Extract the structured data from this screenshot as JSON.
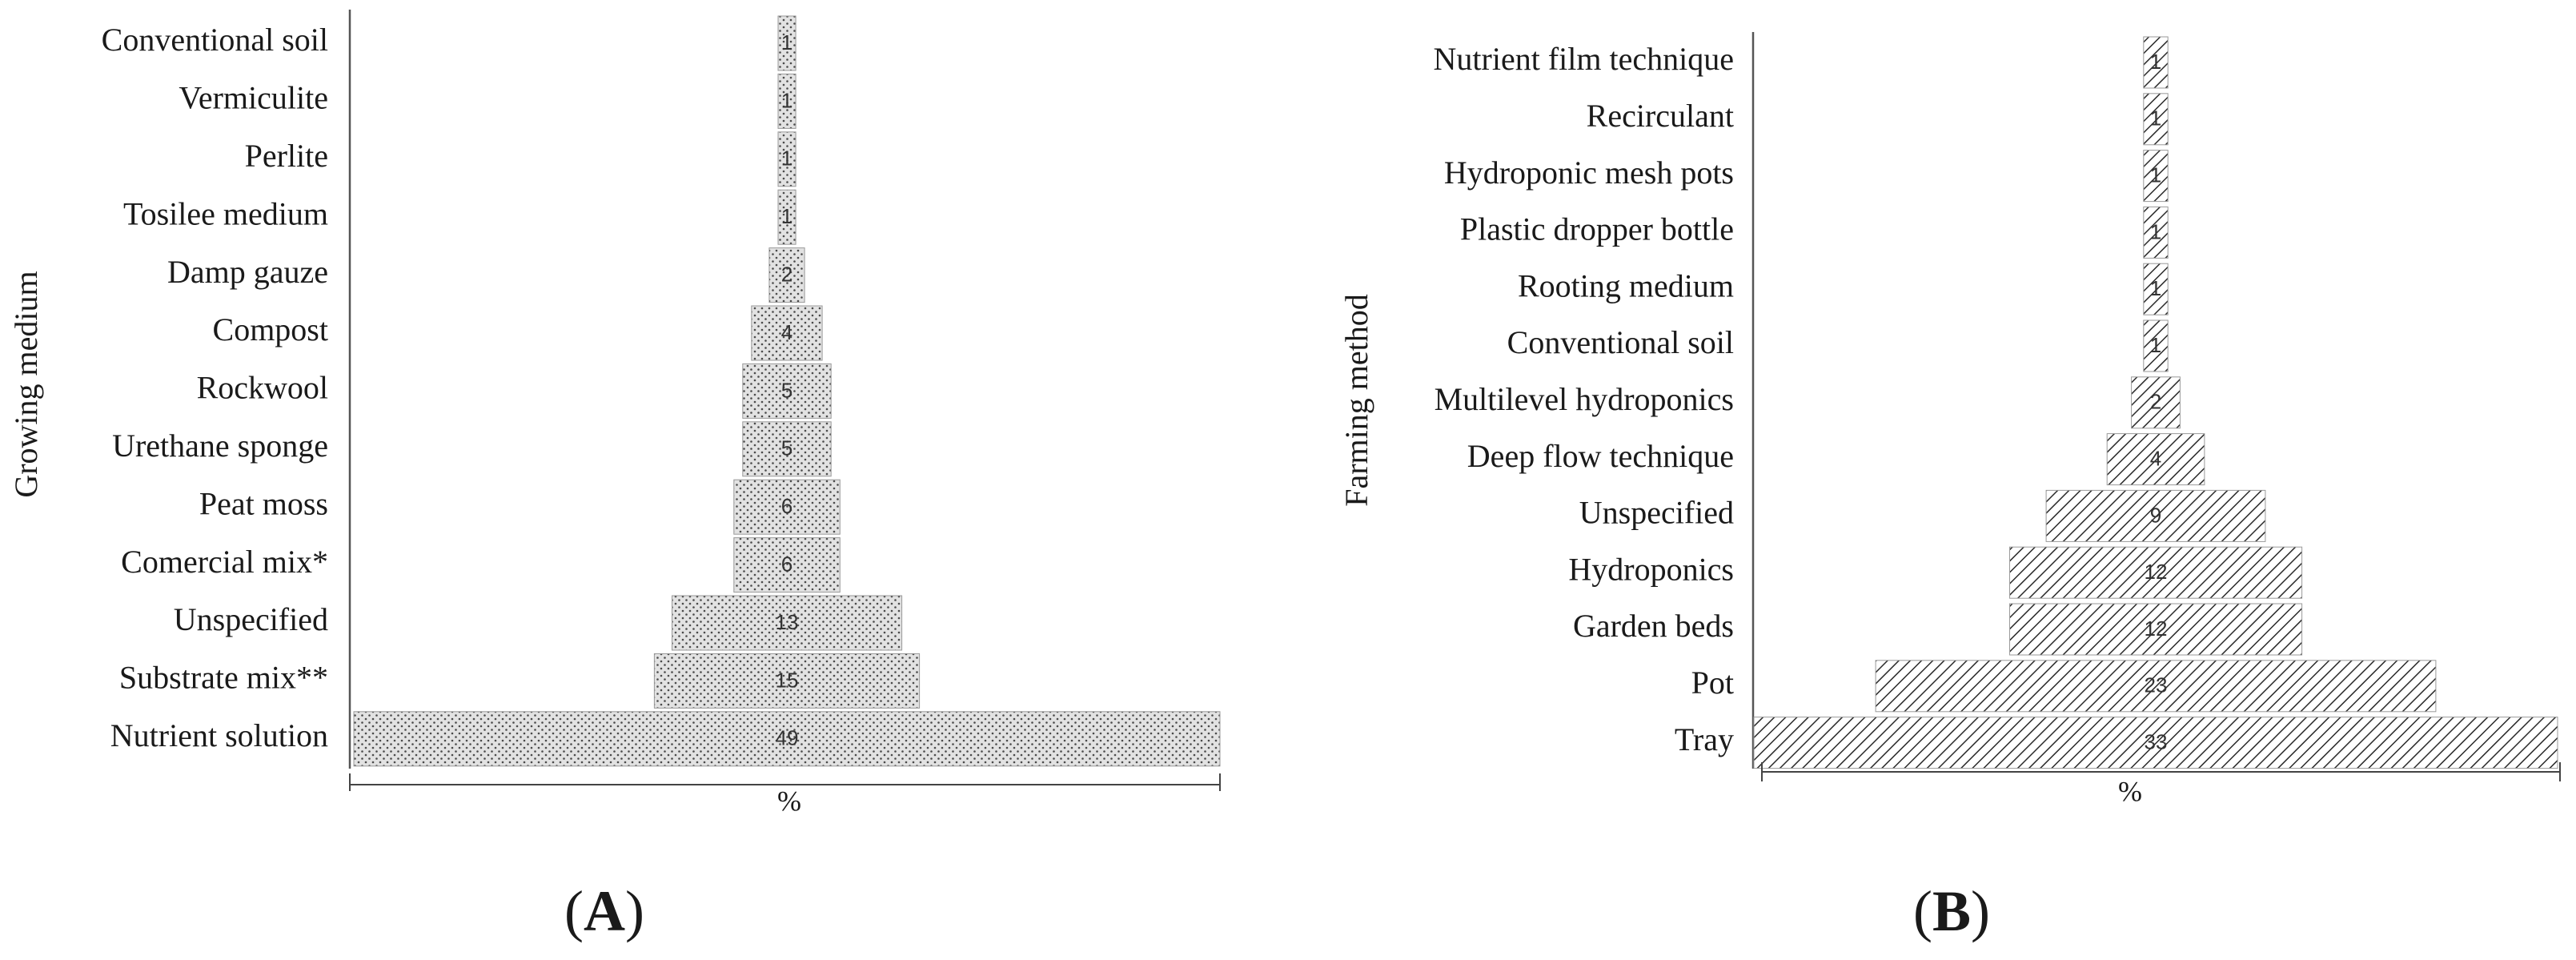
{
  "chart_data": [
    {
      "type": "bar",
      "orientation": "horizontal-centered",
      "panel_label": "(A)",
      "panel_letter": "A",
      "ylabel": "Growing medium",
      "xlabel": "%",
      "categories": [
        "Conventional soil",
        "Vermiculite",
        "Perlite",
        "Tosilee medium",
        "Damp gauze",
        "Compost",
        "Rockwool",
        "Urethane sponge",
        "Peat moss",
        "Comercial mix*",
        "Unspecified",
        "Substrate mix**",
        "Nutrient solution"
      ],
      "values": [
        1,
        1,
        1,
        1,
        2,
        4,
        5,
        5,
        6,
        6,
        13,
        15,
        49
      ],
      "xlim": [
        0,
        49
      ],
      "pattern": "dots",
      "fill_color": "#e2e2e2",
      "pattern_color": "#4a4a4a"
    },
    {
      "type": "bar",
      "orientation": "horizontal-centered",
      "panel_label": "(B)",
      "panel_letter": "B",
      "ylabel": "Farming method",
      "xlabel": "%",
      "categories": [
        "Nutrient film technique",
        "Recirculant",
        "Hydroponic mesh pots",
        "Plastic dropper bottle",
        "Rooting medium",
        "Conventional soil",
        "Multilevel hydroponics",
        "Deep flow technique",
        "Unspecified",
        "Hydroponics",
        "Garden beds",
        "Pot",
        "Tray"
      ],
      "values": [
        1,
        1,
        1,
        1,
        1,
        1,
        2,
        4,
        9,
        12,
        12,
        23,
        33
      ],
      "xlim": [
        0,
        33
      ],
      "pattern": "diagonal-hatch",
      "fill_color": "#ffffff",
      "pattern_color": "#2a2a2a"
    }
  ]
}
